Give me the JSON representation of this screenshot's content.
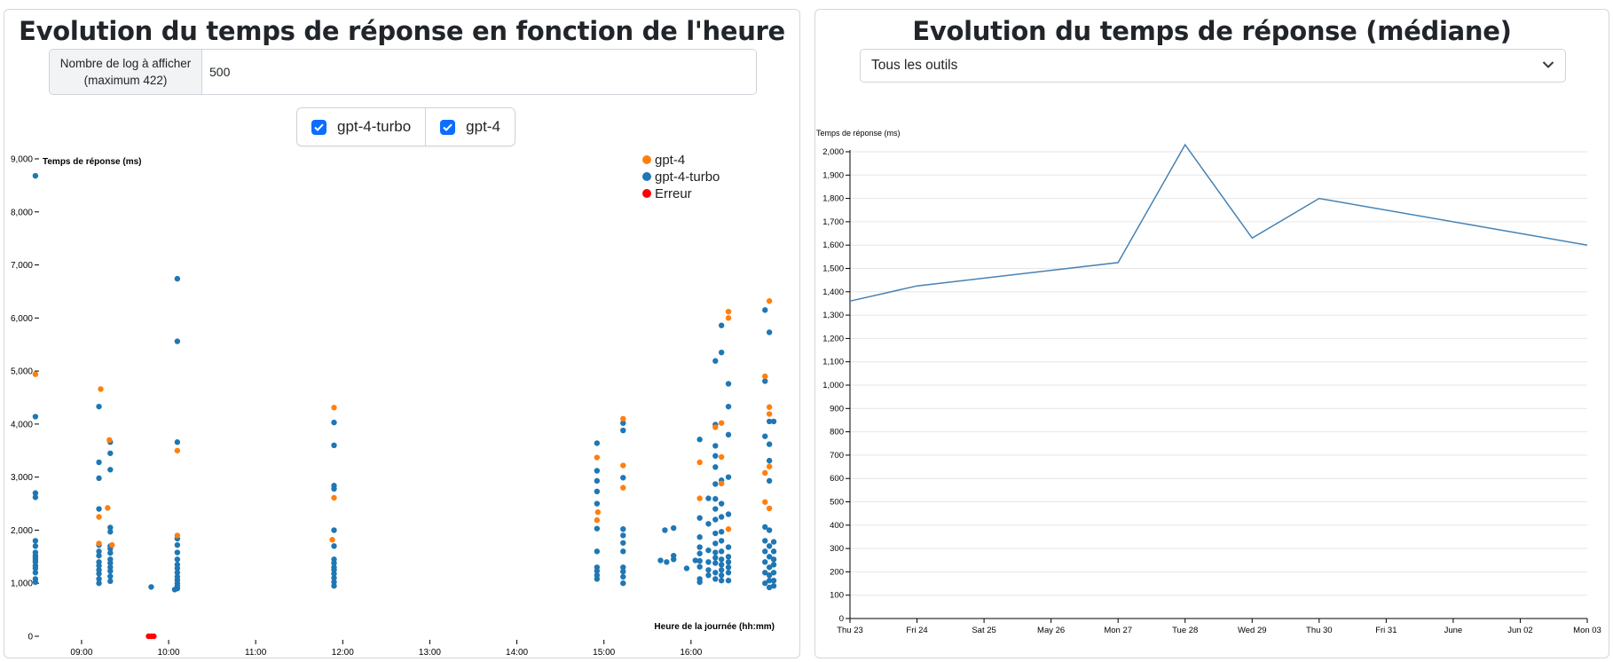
{
  "left_panel": {
    "title": "Evolution du temps de réponse en fonction de l'heure",
    "log_input": {
      "label_line1": "Nombre de log à afficher",
      "label_line2": "(maximum 422)",
      "value": "500"
    },
    "filters": [
      {
        "label": "gpt-4-turbo",
        "checked": true
      },
      {
        "label": "gpt-4",
        "checked": true
      }
    ]
  },
  "right_panel": {
    "title": "Evolution du temps de réponse (médiane)",
    "tool_select": {
      "selected": "Tous les outils"
    }
  },
  "colors": {
    "gpt4": "#ff7f0e",
    "gpt4_turbo": "#1f77b4",
    "error": "#ff0000",
    "line": "#4682b4",
    "checkbox": "#0d6efd"
  },
  "chart_data": [
    {
      "type": "scatter",
      "xlabel": "Heure de la journée (hh:mm)",
      "ylabel": "Temps de réponse (ms)",
      "x_ticks": [
        "09:00",
        "10:00",
        "11:00",
        "12:00",
        "13:00",
        "14:00",
        "15:00",
        "16:00"
      ],
      "x_range_hours": [
        8.42,
        16.98
      ],
      "y_ticks": [
        "0",
        "1,000",
        "2,000",
        "3,000",
        "4,000",
        "5,000",
        "6,000",
        "7,000",
        "8,000",
        "9,000"
      ],
      "ylim": [
        0,
        9000
      ],
      "legend": [
        "gpt-4",
        "gpt-4-turbo",
        "Erreur"
      ],
      "legend_position": "top-right",
      "series": [
        {
          "name": "gpt-4",
          "points": [
            [
              8.47,
              4940
            ],
            [
              9.22,
              4660
            ],
            [
              9.2,
              2250
            ],
            [
              9.2,
              1750
            ],
            [
              9.32,
              3700
            ],
            [
              9.3,
              2420
            ],
            [
              9.35,
              1720
            ],
            [
              10.1,
              3500
            ],
            [
              10.1,
              1900
            ],
            [
              11.9,
              4310
            ],
            [
              11.9,
              2610
            ],
            [
              11.88,
              1820
            ],
            [
              14.92,
              3370
            ],
            [
              14.93,
              2340
            ],
            [
              14.92,
              2190
            ],
            [
              15.22,
              4100
            ],
            [
              15.22,
              3220
            ],
            [
              15.22,
              2800
            ],
            [
              16.1,
              3280
            ],
            [
              16.1,
              2600
            ],
            [
              16.28,
              3940
            ],
            [
              16.35,
              4020
            ],
            [
              16.35,
              3380
            ],
            [
              16.35,
              2880
            ],
            [
              16.43,
              6120
            ],
            [
              16.43,
              6000
            ],
            [
              16.43,
              2020
            ],
            [
              16.85,
              4900
            ],
            [
              16.85,
              3080
            ],
            [
              16.85,
              2530
            ],
            [
              16.9,
              6320
            ],
            [
              16.9,
              4320
            ],
            [
              16.9,
              4190
            ],
            [
              16.9,
              3200
            ],
            [
              16.9,
              2410
            ]
          ]
        },
        {
          "name": "gpt-4-turbo",
          "points": [
            [
              8.47,
              8680
            ],
            [
              8.47,
              4140
            ],
            [
              8.47,
              2700
            ],
            [
              8.47,
              2620
            ],
            [
              8.47,
              1800
            ],
            [
              8.47,
              1700
            ],
            [
              8.47,
              1580
            ],
            [
              8.47,
              1520
            ],
            [
              8.47,
              1480
            ],
            [
              8.47,
              1440
            ],
            [
              8.47,
              1400
            ],
            [
              8.47,
              1330
            ],
            [
              8.47,
              1280
            ],
            [
              8.47,
              1200
            ],
            [
              8.47,
              1080
            ],
            [
              8.47,
              1020
            ],
            [
              9.2,
              4330
            ],
            [
              9.2,
              3280
            ],
            [
              9.2,
              2980
            ],
            [
              9.2,
              2400
            ],
            [
              9.2,
              1720
            ],
            [
              9.2,
              1600
            ],
            [
              9.2,
              1520
            ],
            [
              9.2,
              1400
            ],
            [
              9.2,
              1330
            ],
            [
              9.2,
              1250
            ],
            [
              9.2,
              1180
            ],
            [
              9.2,
              1080
            ],
            [
              9.2,
              1000
            ],
            [
              9.33,
              3660
            ],
            [
              9.33,
              3450
            ],
            [
              9.33,
              3140
            ],
            [
              9.33,
              2050
            ],
            [
              9.33,
              1970
            ],
            [
              9.33,
              1700
            ],
            [
              9.33,
              1650
            ],
            [
              9.33,
              1570
            ],
            [
              9.33,
              1450
            ],
            [
              9.33,
              1380
            ],
            [
              9.33,
              1300
            ],
            [
              9.33,
              1230
            ],
            [
              9.33,
              1130
            ],
            [
              9.33,
              1040
            ],
            [
              9.8,
              930
            ],
            [
              10.1,
              6740
            ],
            [
              10.1,
              5560
            ],
            [
              10.1,
              3660
            ],
            [
              10.1,
              1840
            ],
            [
              10.1,
              1720
            ],
            [
              10.1,
              1580
            ],
            [
              10.1,
              1450
            ],
            [
              10.1,
              1350
            ],
            [
              10.1,
              1280
            ],
            [
              10.1,
              1200
            ],
            [
              10.1,
              1120
            ],
            [
              10.1,
              1060
            ],
            [
              10.1,
              1000
            ],
            [
              10.1,
              950
            ],
            [
              10.1,
              900
            ],
            [
              10.07,
              880
            ],
            [
              11.9,
              4030
            ],
            [
              11.9,
              3600
            ],
            [
              11.9,
              2840
            ],
            [
              11.9,
              2780
            ],
            [
              11.9,
              2000
            ],
            [
              11.9,
              1700
            ],
            [
              11.9,
              1450
            ],
            [
              11.9,
              1380
            ],
            [
              11.9,
              1300
            ],
            [
              11.9,
              1250
            ],
            [
              11.9,
              1180
            ],
            [
              11.9,
              1100
            ],
            [
              11.9,
              1020
            ],
            [
              11.9,
              950
            ],
            [
              14.92,
              3640
            ],
            [
              14.92,
              3120
            ],
            [
              14.92,
              2930
            ],
            [
              14.92,
              2730
            ],
            [
              14.92,
              2500
            ],
            [
              14.92,
              2030
            ],
            [
              14.92,
              1600
            ],
            [
              14.92,
              1300
            ],
            [
              14.92,
              1230
            ],
            [
              14.92,
              1150
            ],
            [
              14.92,
              1080
            ],
            [
              15.22,
              4020
            ],
            [
              15.22,
              3880
            ],
            [
              15.22,
              2990
            ],
            [
              15.22,
              2020
            ],
            [
              15.22,
              1900
            ],
            [
              15.22,
              1760
            ],
            [
              15.22,
              1600
            ],
            [
              15.22,
              1300
            ],
            [
              15.22,
              1220
            ],
            [
              15.22,
              1120
            ],
            [
              15.22,
              1000
            ],
            [
              15.7,
              2000
            ],
            [
              15.8,
              2040
            ],
            [
              15.65,
              1430
            ],
            [
              15.72,
              1400
            ],
            [
              15.8,
              1520
            ],
            [
              15.8,
              1450
            ],
            [
              15.95,
              1280
            ],
            [
              16.05,
              1430
            ],
            [
              16.1,
              3710
            ],
            [
              16.1,
              2230
            ],
            [
              16.1,
              1870
            ],
            [
              16.1,
              1680
            ],
            [
              16.1,
              1560
            ],
            [
              16.1,
              1420
            ],
            [
              16.1,
              1310
            ],
            [
              16.1,
              1080
            ],
            [
              16.1,
              1020
            ],
            [
              16.2,
              2600
            ],
            [
              16.2,
              2120
            ],
            [
              16.2,
              1620
            ],
            [
              16.2,
              1400
            ],
            [
              16.2,
              1250
            ],
            [
              16.2,
              1150
            ],
            [
              16.28,
              5190
            ],
            [
              16.28,
              3990
            ],
            [
              16.28,
              3590
            ],
            [
              16.28,
              3400
            ],
            [
              16.28,
              3190
            ],
            [
              16.28,
              2870
            ],
            [
              16.28,
              2590
            ],
            [
              16.28,
              2400
            ],
            [
              16.28,
              2200
            ],
            [
              16.28,
              1940
            ],
            [
              16.28,
              1750
            ],
            [
              16.28,
              1580
            ],
            [
              16.28,
              1480
            ],
            [
              16.28,
              1380
            ],
            [
              16.28,
              1200
            ],
            [
              16.28,
              1080
            ],
            [
              16.35,
              5860
            ],
            [
              16.35,
              5350
            ],
            [
              16.35,
              2940
            ],
            [
              16.35,
              2500
            ],
            [
              16.35,
              2250
            ],
            [
              16.35,
              1970
            ],
            [
              16.35,
              1800
            ],
            [
              16.35,
              1600
            ],
            [
              16.35,
              1450
            ],
            [
              16.35,
              1350
            ],
            [
              16.35,
              1250
            ],
            [
              16.35,
              1150
            ],
            [
              16.35,
              1050
            ],
            [
              16.43,
              4760
            ],
            [
              16.43,
              4330
            ],
            [
              16.43,
              3800
            ],
            [
              16.43,
              3000
            ],
            [
              16.43,
              2300
            ],
            [
              16.43,
              1680
            ],
            [
              16.43,
              1500
            ],
            [
              16.43,
              1400
            ],
            [
              16.43,
              1300
            ],
            [
              16.43,
              1200
            ],
            [
              16.43,
              1050
            ],
            [
              16.85,
              6150
            ],
            [
              16.85,
              4810
            ],
            [
              16.85,
              3770
            ],
            [
              16.85,
              2060
            ],
            [
              16.85,
              1800
            ],
            [
              16.85,
              1600
            ],
            [
              16.85,
              1400
            ],
            [
              16.85,
              1200
            ],
            [
              16.85,
              1000
            ],
            [
              16.9,
              5730
            ],
            [
              16.9,
              4050
            ],
            [
              16.9,
              3620
            ],
            [
              16.9,
              3310
            ],
            [
              16.9,
              2930
            ],
            [
              16.9,
              2000
            ],
            [
              16.9,
              1700
            ],
            [
              16.9,
              1500
            ],
            [
              16.9,
              1300
            ],
            [
              16.9,
              1150
            ],
            [
              16.9,
              1050
            ],
            [
              16.9,
              920
            ],
            [
              16.95,
              4050
            ],
            [
              16.95,
              1780
            ],
            [
              16.95,
              1600
            ],
            [
              16.95,
              1450
            ],
            [
              16.95,
              1350
            ],
            [
              16.95,
              1200
            ],
            [
              16.95,
              1050
            ],
            [
              16.95,
              950
            ]
          ]
        },
        {
          "name": "Erreur",
          "points": [
            [
              9.77,
              0
            ],
            [
              9.8,
              0
            ],
            [
              9.83,
              0
            ]
          ]
        }
      ]
    },
    {
      "type": "line",
      "ylabel": "Temps de réponse (ms)",
      "categories": [
        "Thu 23",
        "Fri 24",
        "Sat 25",
        "May 26",
        "Mon 27",
        "Tue 28",
        "Wed 29",
        "Thu 30",
        "Fri 31",
        "June",
        "Jun 02",
        "Mon 03"
      ],
      "y_ticks": [
        "0",
        "100",
        "200",
        "300",
        "400",
        "500",
        "600",
        "700",
        "800",
        "900",
        "1,000",
        "1,100",
        "1,200",
        "1,300",
        "1,400",
        "1,500",
        "1,600",
        "1,700",
        "1,800",
        "1,900",
        "2,000"
      ],
      "ylim": [
        0,
        2000
      ],
      "grid": true,
      "points": [
        [
          0,
          1360
        ],
        [
          1,
          1425
        ],
        [
          4,
          1525
        ],
        [
          5,
          2030
        ],
        [
          6,
          1630
        ],
        [
          7,
          1800
        ],
        [
          11,
          1600
        ]
      ]
    }
  ]
}
